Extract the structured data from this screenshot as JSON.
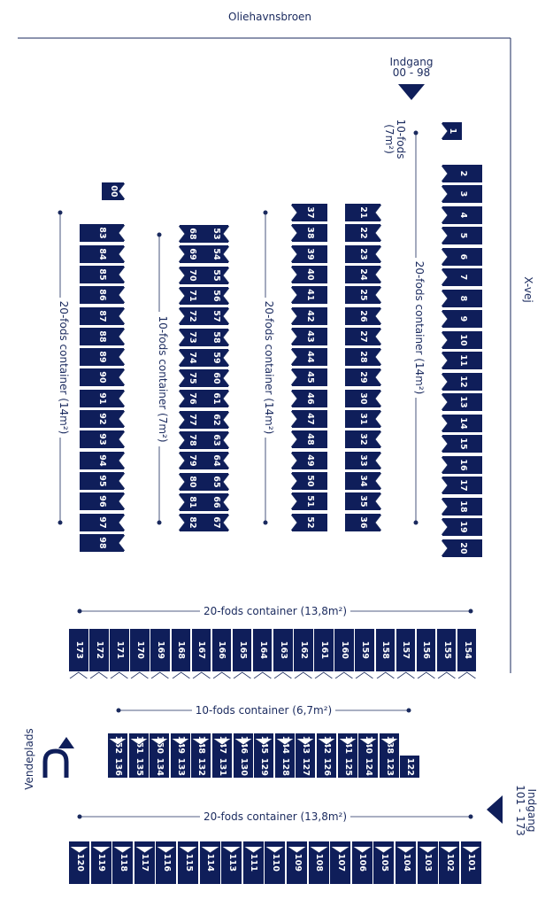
{
  "labels": {
    "street_top": "Oliehavnsbroen",
    "street_right": "X-vej",
    "entrance_top_title": "Indgang",
    "entrance_top_range": "00 - 98",
    "entrance_bottom_title": "Indgang",
    "entrance_bottom_range": "101 - 173",
    "turnaround": "Vendeplads",
    "c10_small_line1": "10-fods",
    "c10_small_line2": "(7m²)",
    "c20_14": "20-fods container (14m²)",
    "c10_7": "10-fods container (7m²)",
    "c20_138": "20-fods container (13,8m²)",
    "c10_67": "10-fods container (6,7m²)"
  },
  "colors": {
    "container": "#0f1e5a",
    "text": "#1a2a5e"
  },
  "groups": {
    "col_01_20": [
      "1",
      "2",
      "3",
      "4",
      "5",
      "6",
      "7",
      "8",
      "9",
      "10",
      "11",
      "12",
      "13",
      "14",
      "15",
      "16",
      "17",
      "18",
      "19",
      "20"
    ],
    "col_21_36": [
      "21",
      "22",
      "23",
      "24",
      "25",
      "26",
      "27",
      "28",
      "29",
      "30",
      "31",
      "32",
      "33",
      "34",
      "35",
      "36"
    ],
    "col_37_52": [
      "37",
      "38",
      "39",
      "40",
      "41",
      "42",
      "43",
      "44",
      "45",
      "46",
      "47",
      "48",
      "49",
      "50",
      "51",
      "52"
    ],
    "col_53_67": [
      "53",
      "54",
      "55",
      "56",
      "57",
      "58",
      "59",
      "60",
      "61",
      "62",
      "63",
      "64",
      "65",
      "66",
      "67"
    ],
    "col_68_82": [
      "68",
      "69",
      "70",
      "71",
      "72",
      "73",
      "74",
      "75",
      "76",
      "77",
      "78",
      "79",
      "80",
      "81",
      "82"
    ],
    "col_00_98": [
      "00",
      "83",
      "84",
      "85",
      "86",
      "87",
      "88",
      "89",
      "90",
      "91",
      "92",
      "93",
      "94",
      "95",
      "96",
      "97",
      "98"
    ],
    "row_154_173": [
      "154",
      "155",
      "156",
      "157",
      "158",
      "159",
      "160",
      "161",
      "162",
      "163",
      "164",
      "165",
      "166",
      "167",
      "168",
      "169",
      "170",
      "171",
      "172",
      "173"
    ],
    "row_138_152": [
      "138",
      "140",
      "141",
      "142",
      "143",
      "144",
      "145",
      "146",
      "147",
      "148",
      "149",
      "150",
      "151",
      "152"
    ],
    "row_122_136": [
      "122",
      "123",
      "124",
      "125",
      "126",
      "127",
      "128",
      "129",
      "130",
      "131",
      "132",
      "133",
      "134",
      "135",
      "136"
    ],
    "row_101_120": [
      "101",
      "102",
      "103",
      "104",
      "105",
      "106",
      "107",
      "108",
      "109",
      "110",
      "111",
      "113",
      "114",
      "115",
      "116",
      "117",
      "118",
      "119",
      "120"
    ]
  }
}
